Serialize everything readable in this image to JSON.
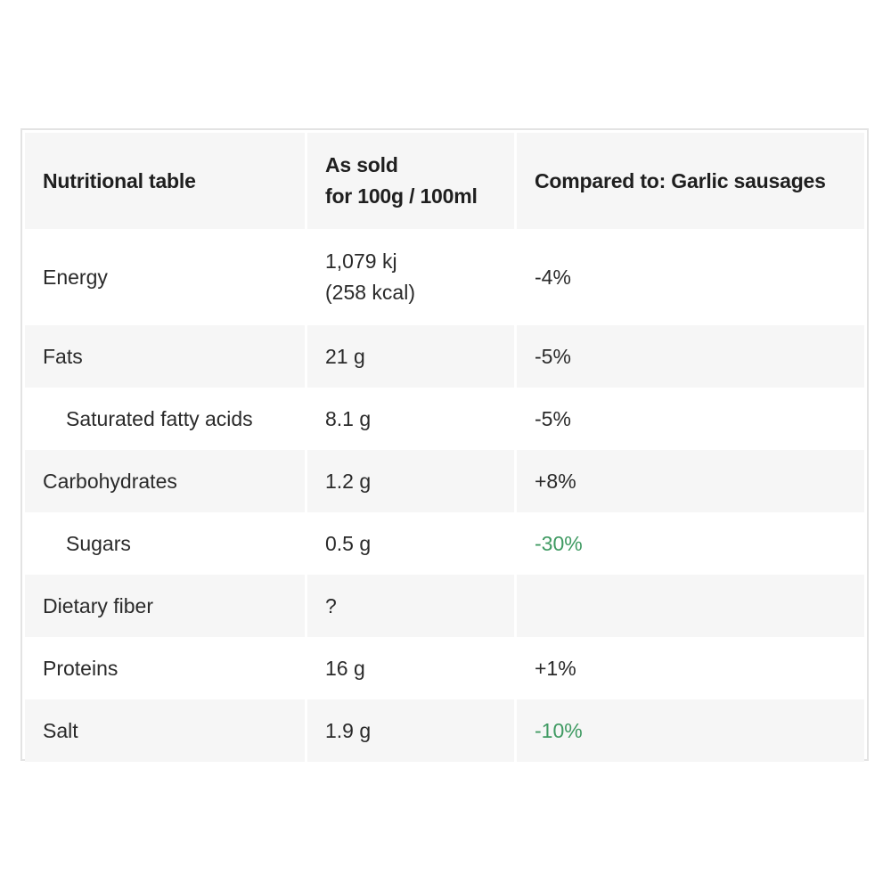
{
  "table": {
    "headers": {
      "col1": "Nutritional table",
      "col2_line1": "As sold",
      "col2_line2": "for 100g / 100ml",
      "col3": "Compared to: Garlic sausages"
    },
    "rows": [
      {
        "name": "Energy",
        "value_line1": "1,079 kj",
        "value_line2": "(258 kcal)",
        "compare": "-4%"
      },
      {
        "name": "Fats",
        "value": "21 g",
        "compare": "-5%"
      },
      {
        "name": "Saturated fatty acids",
        "value": "8.1 g",
        "compare": "-5%"
      },
      {
        "name": "Carbohydrates",
        "value": "1.2 g",
        "compare": "+8%"
      },
      {
        "name": "Sugars",
        "value": "0.5 g",
        "compare": "-30%"
      },
      {
        "name": "Dietary fiber",
        "value": "?",
        "compare": ""
      },
      {
        "name": "Proteins",
        "value": "16 g",
        "compare": "+1%"
      },
      {
        "name": "Salt",
        "value": "1.9 g",
        "compare": "-10%"
      }
    ]
  },
  "colors": {
    "highlight_green": "#3f9a62",
    "shade": "#f6f6f6",
    "border": "#e3e3e3"
  }
}
